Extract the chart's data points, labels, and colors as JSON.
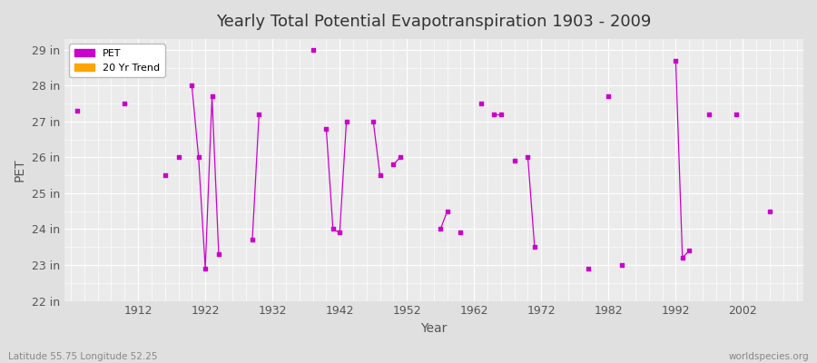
{
  "title": "Yearly Total Potential Evapotranspiration 1903 - 2009",
  "xlabel": "Year",
  "ylabel": "PET",
  "footer_left": "Latitude 55.75 Longitude 52.25",
  "footer_right": "worldspecies.org",
  "ylim": [
    22,
    29.3
  ],
  "yticks": [
    22,
    23,
    24,
    25,
    26,
    27,
    28,
    29
  ],
  "ytick_labels": [
    "22 in",
    "23 in",
    "24 in",
    "25 in",
    "26 in",
    "27 in",
    "28 in",
    "29 in"
  ],
  "xticks": [
    1912,
    1922,
    1932,
    1942,
    1952,
    1962,
    1972,
    1982,
    1992,
    2002
  ],
  "xlim": [
    1901,
    2011
  ],
  "pet_color": "#cc00cc",
  "trend_color": "#ffa500",
  "bg_color": "#e0e0e0",
  "plot_bg_color": "#ebebeb",
  "grid_color": "#ffffff",
  "pet_data": {
    "years": [
      1903,
      1910,
      1916,
      1918,
      1920,
      1921,
      1922,
      1923,
      1924,
      1929,
      1930,
      1938,
      1940,
      1941,
      1942,
      1943,
      1947,
      1948,
      1950,
      1951,
      1957,
      1958,
      1960,
      1963,
      1965,
      1966,
      1968,
      1970,
      1971,
      1979,
      1982,
      1984,
      1992,
      1993,
      1994,
      1997,
      2001,
      2006
    ],
    "values": [
      27.3,
      27.5,
      25.5,
      26.0,
      28.0,
      26.0,
      22.9,
      27.7,
      23.3,
      23.7,
      27.2,
      29.0,
      26.8,
      24.0,
      23.9,
      27.0,
      27.0,
      25.5,
      25.8,
      26.0,
      24.0,
      24.5,
      23.9,
      27.5,
      27.2,
      27.2,
      25.9,
      26.0,
      23.5,
      22.9,
      27.7,
      23.0,
      28.7,
      23.2,
      23.4,
      27.2,
      27.2,
      24.5
    ]
  },
  "segments": [
    [
      1920,
      1921,
      1922,
      1923,
      1924
    ],
    [
      1929,
      1930
    ],
    [
      1940,
      1941,
      1942,
      1943
    ],
    [
      1947,
      1948
    ],
    [
      1950,
      1951
    ],
    [
      1957,
      1958
    ],
    [
      1965,
      1966
    ],
    [
      1970,
      1971
    ],
    [
      1992,
      1993,
      1994
    ]
  ],
  "legend_entries": [
    "PET",
    "20 Yr Trend"
  ]
}
